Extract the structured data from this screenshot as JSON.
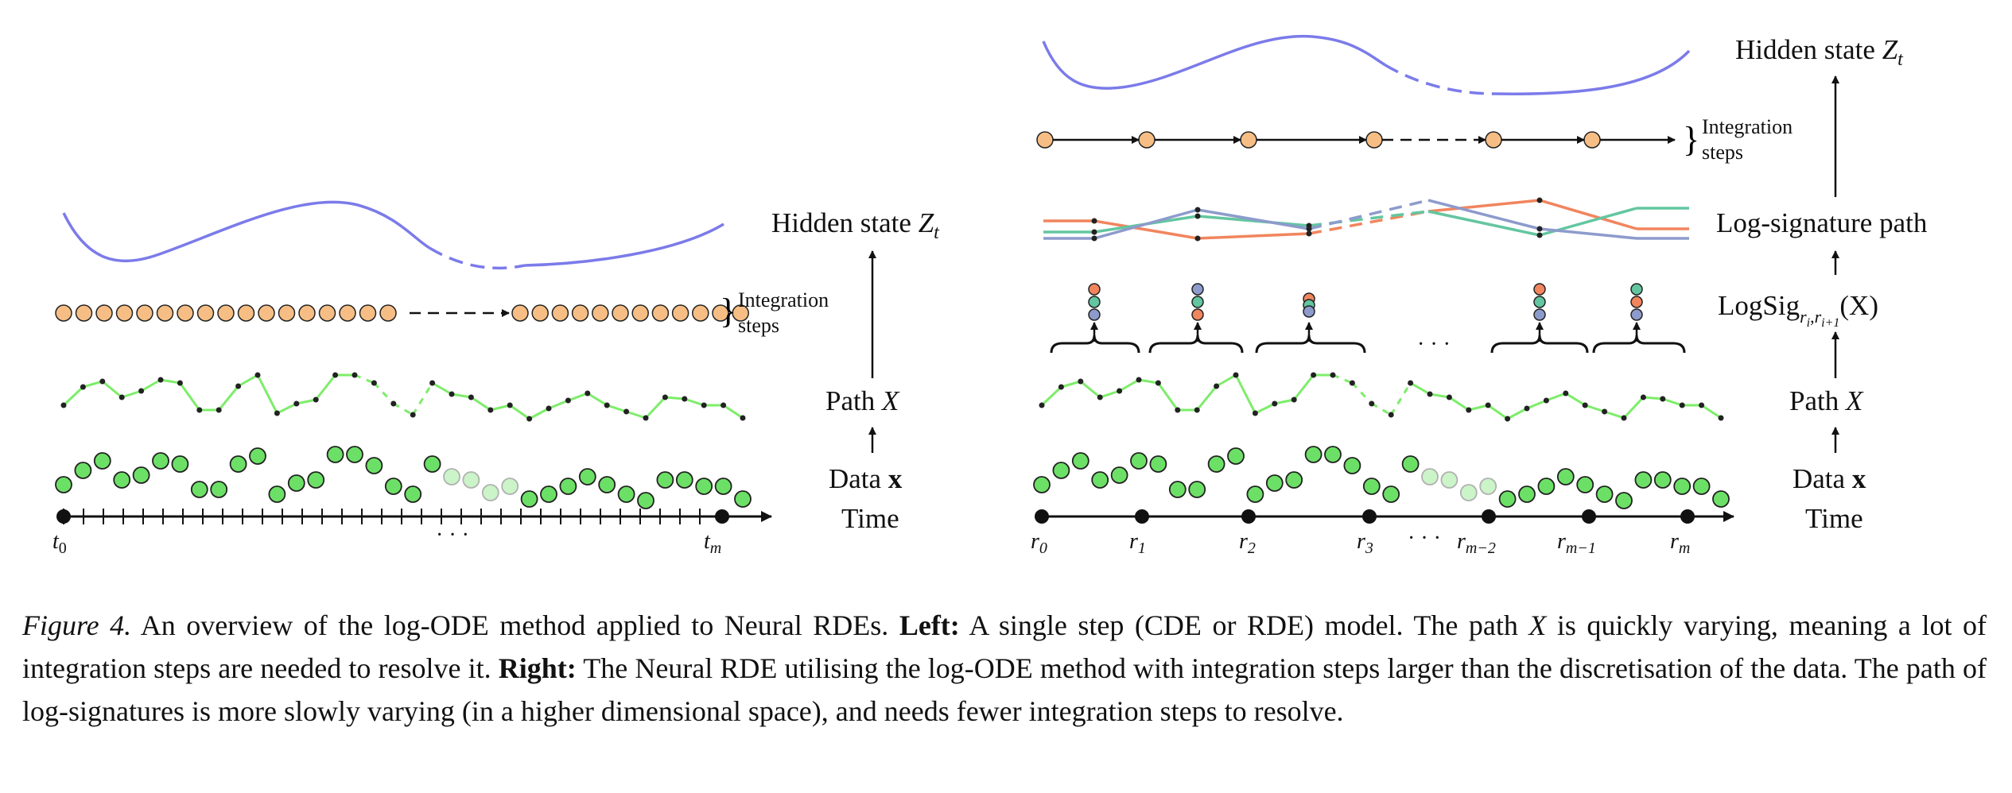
{
  "figure": {
    "left": {
      "hidden_state_label": "Hidden state",
      "hidden_state_var": "Z",
      "hidden_state_sub": "t",
      "integration_label_line1": "Integration",
      "integration_label_line2": "steps",
      "path_label": "Path",
      "path_var": "X",
      "data_label": "Data",
      "data_var": "x",
      "time_label": "Time",
      "time_start": "t",
      "time_start_sub": "0",
      "time_end": "t",
      "time_end_sub": "m",
      "ellipsis": "· · ·"
    },
    "right": {
      "hidden_state_label": "Hidden state",
      "hidden_state_var": "Z",
      "hidden_state_sub": "t",
      "integration_label_line1": "Integration",
      "integration_label_line2": "steps",
      "logsig_path_label": "Log-signature path",
      "logsig_label": "LogSig",
      "logsig_sub": "r",
      "logsig_sub_i": "i",
      "logsig_sub_i1": "i+1",
      "logsig_arg": "(X)",
      "path_label": "Path",
      "path_var": "X",
      "data_label": "Data",
      "data_var": "x",
      "time_label": "Time",
      "ellipsis": "· · ·",
      "markers": [
        {
          "main": "r",
          "sub": "0"
        },
        {
          "main": "r",
          "sub": "1"
        },
        {
          "main": "r",
          "sub": "2"
        },
        {
          "main": "r",
          "sub": "3"
        },
        {
          "main": "r",
          "sub": "m−2"
        },
        {
          "main": "r",
          "sub": "m−1"
        },
        {
          "main": "r",
          "sub": "m"
        }
      ]
    },
    "colors": {
      "hidden_curve": "#7b7bea",
      "integration_node": "#f6be84",
      "path_line": "#7ded6a",
      "data_point": "#6ce066",
      "logsig_orange": "#f1855e",
      "logsig_green": "#63c6a0",
      "logsig_blue": "#8d9bcc"
    }
  },
  "caption": {
    "figure_label": "Figure 4.",
    "intro": " An overview of the log-ODE method applied to Neural RDEs. ",
    "left_label": "Left:",
    "left_text_a": " A single step (CDE or RDE) model. The path ",
    "left_var": "X",
    "left_text_b": " is quickly varying, meaning a lot of integration steps are needed to resolve it. ",
    "right_label": "Right:",
    "right_text": " The Neural RDE utilising the log-ODE method with integration steps larger than the discretisation of the data. The path of log-signatures is more slowly varying (in a higher dimensional space), and needs fewer integration steps to resolve."
  }
}
